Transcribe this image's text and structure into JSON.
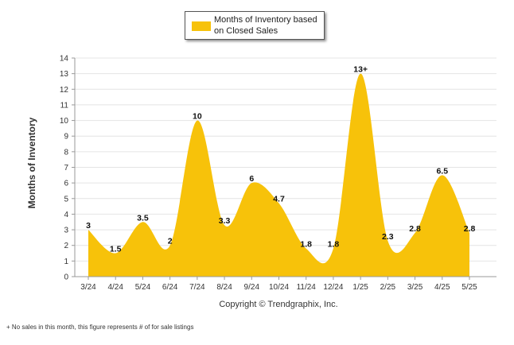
{
  "legend": {
    "label": "Months of Inventory based on Closed Sales",
    "color": "#F7C20A"
  },
  "copyright": "Copyright © Trendgraphix, Inc.",
  "footnote": "+  No sales in this month, this figure represents # of for sale listings",
  "chart_data": {
    "type": "area",
    "ylabel": "Months of Inventory",
    "ylim": [
      0,
      14
    ],
    "yticks": [
      0,
      1,
      2,
      3,
      4,
      5,
      6,
      7,
      8,
      9,
      10,
      11,
      12,
      13,
      14
    ],
    "categories": [
      "3/24",
      "4/24",
      "5/24",
      "6/24",
      "7/24",
      "8/24",
      "9/24",
      "10/24",
      "11/24",
      "12/24",
      "1/25",
      "2/25",
      "3/25",
      "4/25",
      "5/25"
    ],
    "series": [
      {
        "name": "Months of Inventory based on Closed Sales",
        "color": "#F7C20A",
        "values": [
          3,
          1.5,
          3.5,
          2,
          10,
          3.3,
          6,
          4.7,
          1.8,
          1.8,
          13,
          2.3,
          2.8,
          6.5,
          2.8
        ],
        "labels": [
          "3",
          "1.5",
          "3.5",
          "2",
          "10",
          "3.3",
          "6",
          "4.7",
          "1.8",
          "1.8",
          "13+",
          "2.3",
          "2.8",
          "6.5",
          "2.8"
        ]
      }
    ],
    "grid": true,
    "legend_position": "top"
  }
}
